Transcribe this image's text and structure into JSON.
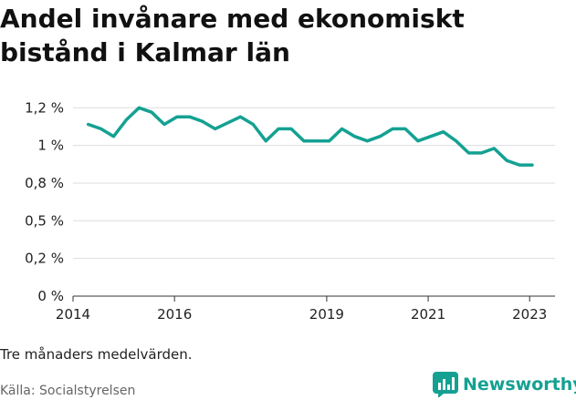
{
  "title": "Andel invånare med ekonomiskt bistånd i Kalmar län",
  "note": "Tre månaders medelvärden.",
  "source": "Källa: Socialstyrelsen",
  "brand": {
    "name": "Newsworthy",
    "icon": "bar-chart-icon",
    "color": "#14a192"
  },
  "chart_data": {
    "type": "line",
    "title": "Andel invånare med ekonomiskt bistånd i Kalmar län",
    "xlabel": "",
    "ylabel": "",
    "xlim": [
      2014.0,
      2023.5
    ],
    "ylim": [
      0,
      1.3
    ],
    "grid": true,
    "legend": "none",
    "x_ticks": [
      {
        "value": 2014,
        "label": "2014"
      },
      {
        "value": 2016,
        "label": "2016"
      },
      {
        "value": 2019,
        "label": "2019"
      },
      {
        "value": 2021,
        "label": "2021"
      },
      {
        "value": 2023,
        "label": "2023"
      }
    ],
    "y_ticks": [
      {
        "value": 0,
        "label": "0 %"
      },
      {
        "value": 0.25,
        "label": "0,2 %"
      },
      {
        "value": 0.5,
        "label": "0,5 %"
      },
      {
        "value": 0.75,
        "label": "0,8 %"
      },
      {
        "value": 1.0,
        "label": "1 %"
      },
      {
        "value": 1.25,
        "label": "1,2 %"
      }
    ],
    "series": [
      {
        "color": "#14a192",
        "x": [
          2014.3,
          2014.55,
          2014.8,
          2015.05,
          2015.3,
          2015.55,
          2015.8,
          2016.05,
          2016.3,
          2016.55,
          2016.8,
          2017.05,
          2017.3,
          2017.55,
          2017.8,
          2018.05,
          2018.3,
          2018.55,
          2018.8,
          2019.05,
          2019.3,
          2019.55,
          2019.8,
          2020.05,
          2020.3,
          2020.55,
          2020.8,
          2021.05,
          2021.3,
          2021.55,
          2021.8,
          2022.05,
          2022.3,
          2022.55,
          2022.8,
          2023.05
        ],
        "values": [
          1.14,
          1.11,
          1.06,
          1.17,
          1.25,
          1.22,
          1.14,
          1.19,
          1.19,
          1.16,
          1.11,
          1.15,
          1.19,
          1.14,
          1.03,
          1.11,
          1.11,
          1.03,
          1.03,
          1.03,
          1.11,
          1.06,
          1.03,
          1.06,
          1.11,
          1.11,
          1.03,
          1.06,
          1.09,
          1.03,
          0.95,
          0.95,
          0.98,
          0.9,
          0.87,
          0.87
        ]
      }
    ]
  }
}
